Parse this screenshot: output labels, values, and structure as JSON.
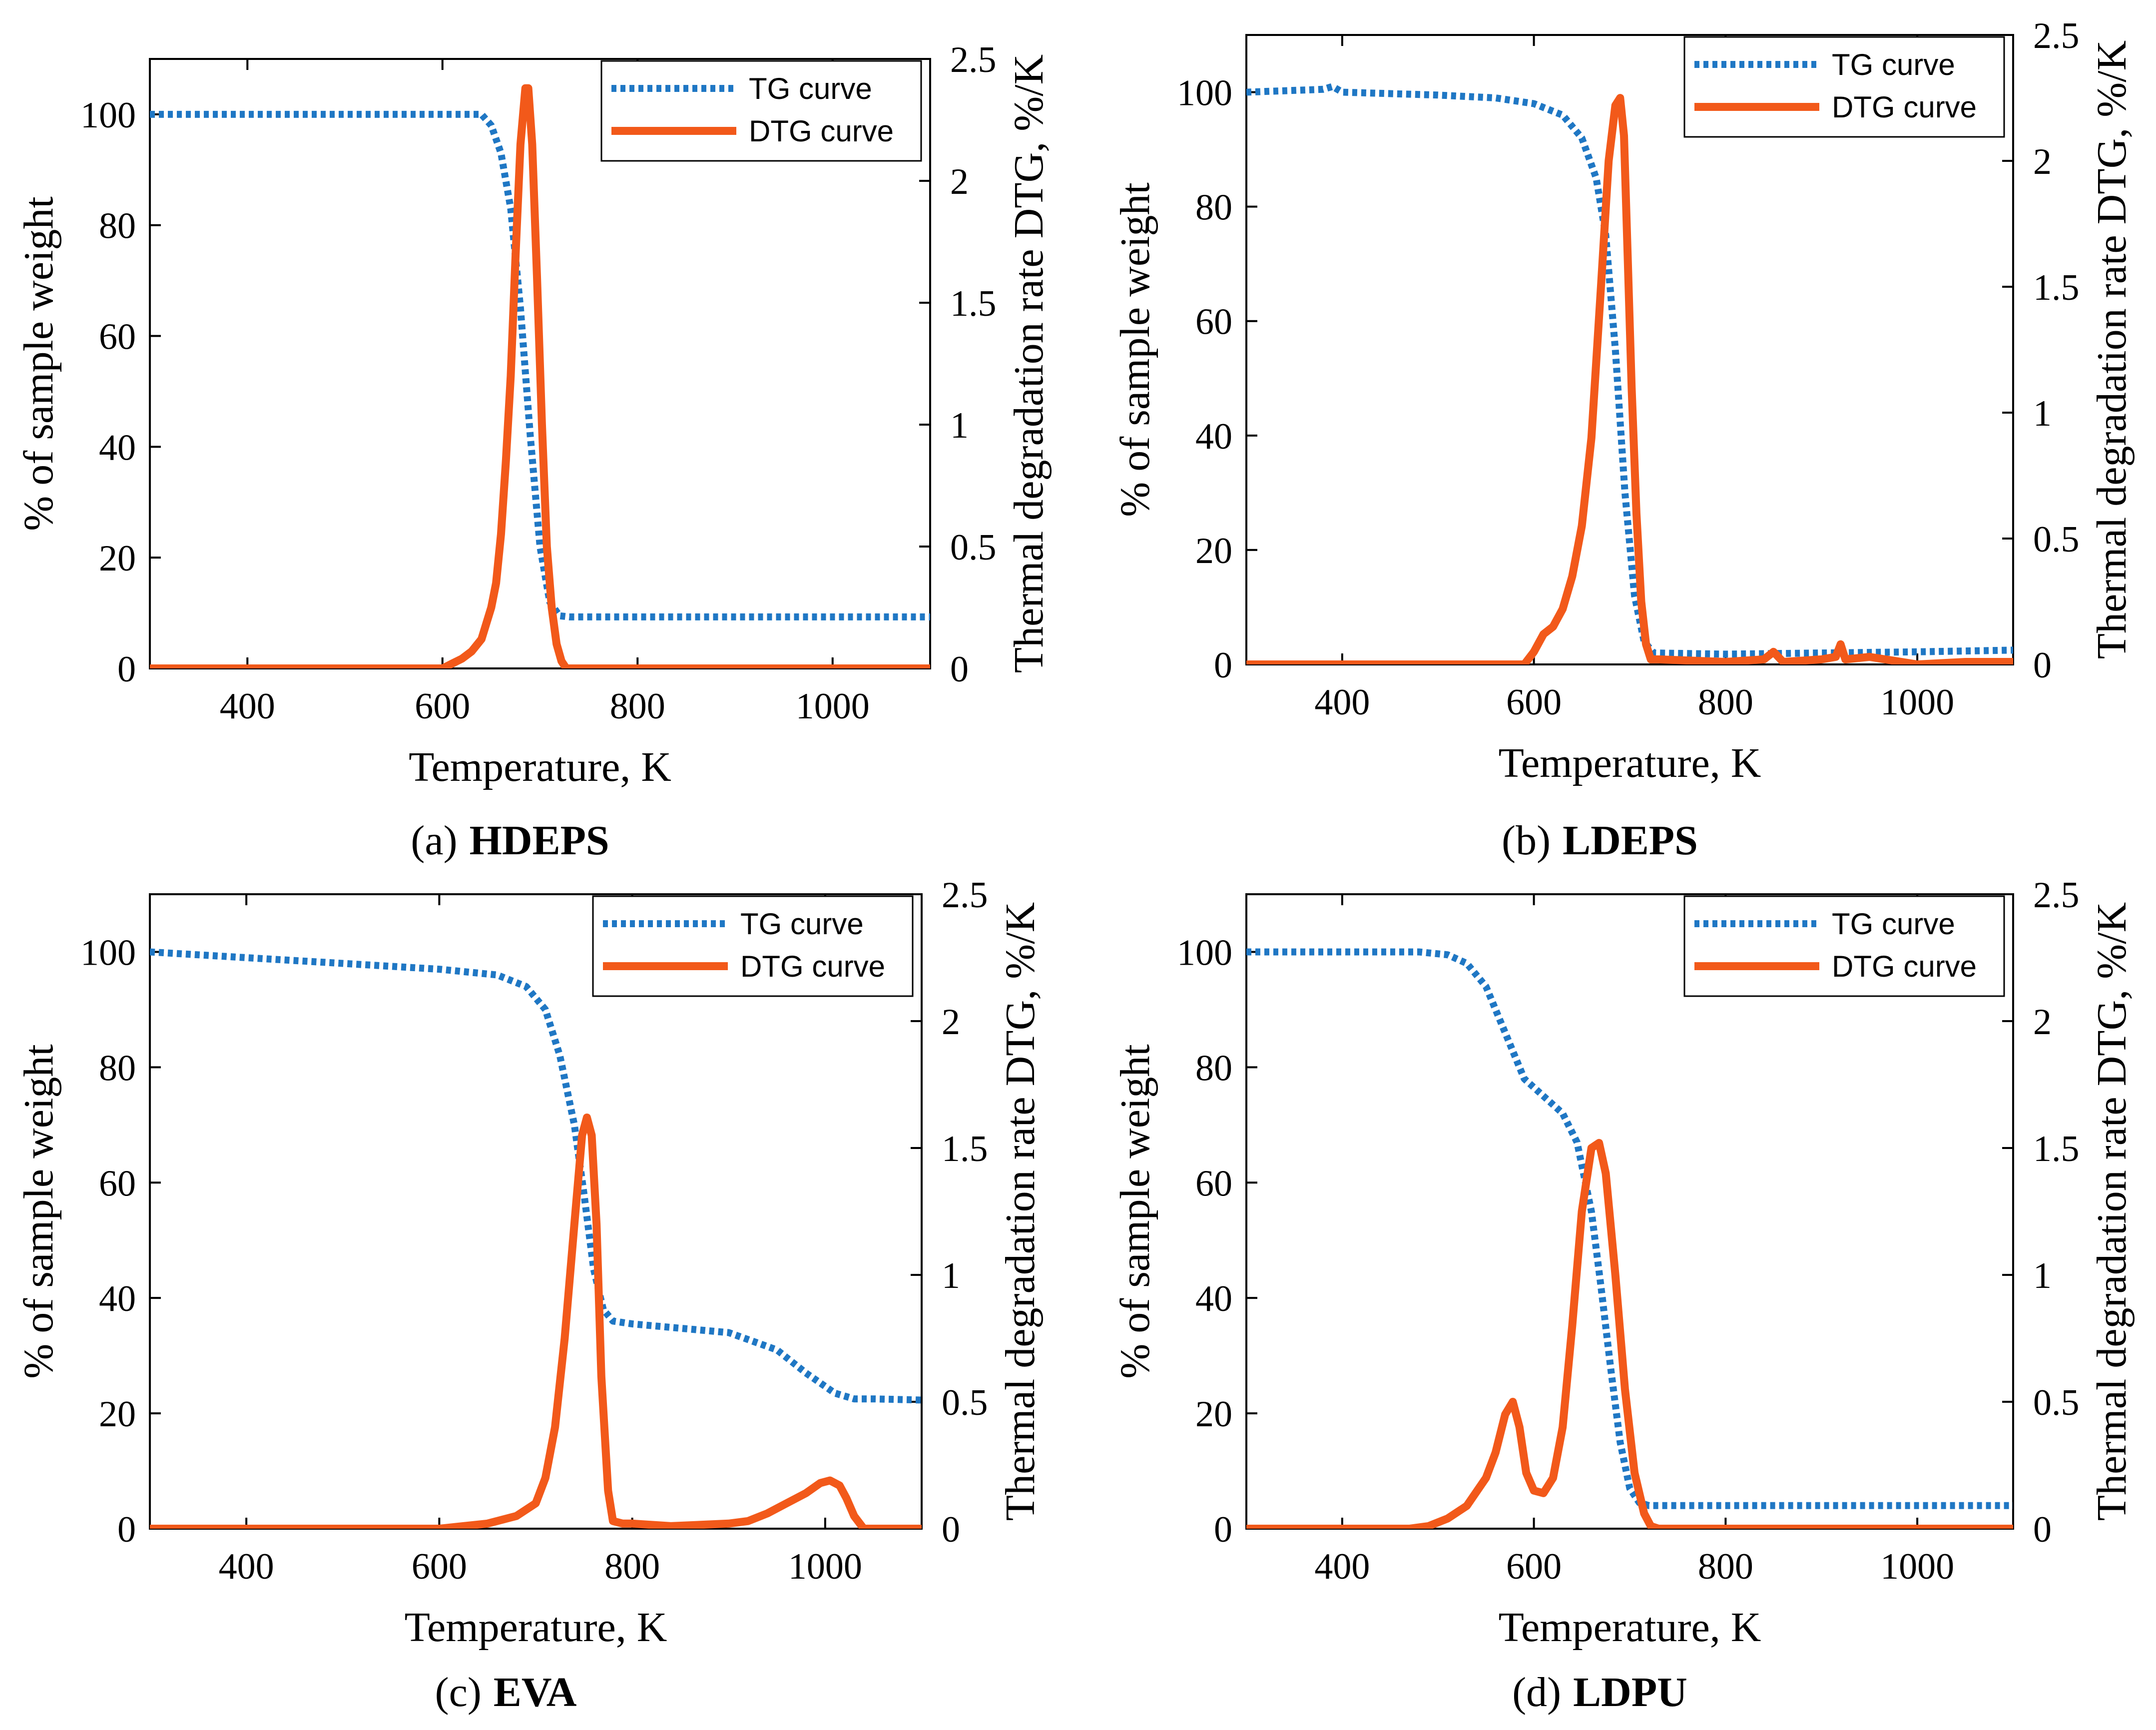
{
  "colors": {
    "tg": "#1f77c4",
    "dtg": "#f2591a",
    "axis": "#000000"
  },
  "chart_data": [
    {
      "id": "a",
      "type": "line",
      "caption_prefix": "(a)",
      "caption_name": "HDEPS",
      "xlabel": "Temperature, K",
      "ylabel_left": "% of sample weight",
      "ylabel_right": "Thermal degradation rate DTG, %/K",
      "xlim": [
        300,
        1100
      ],
      "ylim_left": [
        0,
        110
      ],
      "ylim_right": [
        0,
        2.5
      ],
      "xticks": [
        400,
        600,
        800,
        1000
      ],
      "yticks_left": [
        0,
        20,
        40,
        60,
        80,
        100
      ],
      "yticks_right": [
        0,
        0.5,
        1,
        1.5,
        2,
        2.5
      ],
      "legend": [
        "TG curve",
        "DTG curve"
      ],
      "legend_position": "top-right",
      "series": [
        {
          "name": "TG curve",
          "axis": "left",
          "style": "dotted",
          "x": [
            300,
            500,
            640,
            650,
            660,
            670,
            680,
            690,
            700,
            710,
            720,
            730,
            800,
            1000,
            1100
          ],
          "y": [
            100,
            100,
            100,
            98,
            93,
            83,
            65,
            42,
            22,
            12,
            9.5,
            9.3,
            9.3,
            9.3,
            9.3
          ]
        },
        {
          "name": "DTG curve",
          "axis": "right",
          "style": "solid",
          "x": [
            300,
            600,
            610,
            620,
            630,
            640,
            650,
            655,
            660,
            665,
            670,
            675,
            680,
            685,
            688,
            692,
            697,
            702,
            707,
            712,
            717,
            722,
            727,
            735,
            1100
          ],
          "y": [
            0,
            0,
            0.02,
            0.04,
            0.07,
            0.12,
            0.25,
            0.35,
            0.55,
            0.85,
            1.2,
            1.7,
            2.15,
            2.38,
            2.38,
            2.15,
            1.6,
            1.0,
            0.5,
            0.25,
            0.1,
            0.03,
            0.0,
            0,
            0
          ]
        }
      ]
    },
    {
      "id": "b",
      "type": "line",
      "caption_prefix": "(b)",
      "caption_name": "LDEPS",
      "xlabel": "Temperature, K",
      "ylabel_left": "% of sample weight",
      "ylabel_right": "Thermal degradation rate DTG, %/K",
      "xlim": [
        300,
        1100
      ],
      "ylim_left": [
        0,
        110
      ],
      "ylim_right": [
        0,
        2.5
      ],
      "xticks": [
        400,
        600,
        800,
        1000
      ],
      "yticks_left": [
        0,
        20,
        40,
        60,
        80,
        100
      ],
      "yticks_right": [
        0,
        0.5,
        1,
        1.5,
        2,
        2.5
      ],
      "legend": [
        "TG curve",
        "DTG curve"
      ],
      "legend_position": "top-right",
      "series": [
        {
          "name": "TG curve",
          "axis": "left",
          "style": "dotted",
          "x": [
            300,
            380,
            390,
            400,
            500,
            560,
            600,
            630,
            650,
            665,
            675,
            685,
            695,
            705,
            715,
            725,
            800,
            900,
            1000,
            1100
          ],
          "y": [
            100,
            100.5,
            101,
            100,
            99.5,
            99,
            98,
            96,
            92,
            85,
            75,
            55,
            30,
            12,
            4,
            2,
            1.8,
            2.0,
            2.2,
            2.5
          ]
        },
        {
          "name": "DTG curve",
          "axis": "right",
          "style": "solid",
          "x": [
            300,
            590,
            600,
            610,
            620,
            630,
            640,
            650,
            660,
            670,
            678,
            685,
            690,
            694,
            698,
            702,
            707,
            712,
            717,
            722,
            730,
            800,
            840,
            850,
            860,
            900,
            915,
            920,
            925,
            950,
            1000,
            1050,
            1100
          ],
          "y": [
            0,
            0,
            0.05,
            0.12,
            0.15,
            0.22,
            0.35,
            0.55,
            0.9,
            1.5,
            2.0,
            2.22,
            2.25,
            2.1,
            1.6,
            1.1,
            0.6,
            0.25,
            0.08,
            0.02,
            0.02,
            0.01,
            0.02,
            0.05,
            0.01,
            0.02,
            0.03,
            0.08,
            0.02,
            0.03,
            0.0,
            0.01,
            0.01
          ]
        }
      ]
    },
    {
      "id": "c",
      "type": "line",
      "caption_prefix": "(c)",
      "caption_name": "EVA",
      "xlabel": "Temperature, K",
      "ylabel_left": "% of sample weight",
      "ylabel_right": "Thermal degradation rate DTG, %/K",
      "xlim": [
        300,
        1100
      ],
      "ylim_left": [
        0,
        110
      ],
      "ylim_right": [
        0,
        2.5
      ],
      "xticks": [
        400,
        600,
        800,
        1000
      ],
      "yticks_left": [
        0,
        20,
        40,
        60,
        80,
        100
      ],
      "yticks_right": [
        0,
        0.5,
        1,
        1.5,
        2,
        2.5
      ],
      "legend": [
        "TG curve",
        "DTG curve"
      ],
      "legend_position": "top-right",
      "series": [
        {
          "name": "TG curve",
          "axis": "left",
          "style": "dotted",
          "x": [
            300,
            400,
            500,
            600,
            660,
            690,
            710,
            725,
            740,
            750,
            760,
            770,
            780,
            800,
            900,
            950,
            980,
            1010,
            1030,
            1050,
            1100
          ],
          "y": [
            100,
            99,
            98,
            97,
            96,
            94,
            90,
            82,
            70,
            58,
            45,
            38,
            36,
            35.5,
            34,
            31,
            27,
            23.5,
            22.5,
            22.5,
            22.3
          ]
        },
        {
          "name": "DTG curve",
          "axis": "right",
          "style": "solid",
          "x": [
            300,
            600,
            650,
            680,
            700,
            710,
            720,
            730,
            740,
            748,
            753,
            758,
            763,
            768,
            775,
            780,
            790,
            800,
            840,
            900,
            920,
            940,
            960,
            980,
            995,
            1005,
            1015,
            1022,
            1030,
            1040,
            1100
          ],
          "y": [
            0,
            0,
            0.02,
            0.05,
            0.1,
            0.2,
            0.4,
            0.75,
            1.2,
            1.55,
            1.62,
            1.55,
            1.2,
            0.6,
            0.15,
            0.03,
            0.02,
            0.02,
            0.01,
            0.02,
            0.03,
            0.06,
            0.1,
            0.14,
            0.18,
            0.19,
            0.17,
            0.12,
            0.05,
            0.0,
            0.0
          ]
        }
      ]
    },
    {
      "id": "d",
      "type": "line",
      "caption_prefix": "(d)",
      "caption_name": "LDPU",
      "xlabel": "Temperature, K",
      "ylabel_left": "% of sample weight",
      "ylabel_right": "Thermal degradation rate DTG, %/K",
      "xlim": [
        300,
        1100
      ],
      "ylim_left": [
        0,
        110
      ],
      "ylim_right": [
        0,
        2.5
      ],
      "xticks": [
        400,
        600,
        800,
        1000
      ],
      "yticks_left": [
        0,
        20,
        40,
        60,
        80,
        100
      ],
      "yticks_right": [
        0,
        0.5,
        1,
        1.5,
        2,
        2.5
      ],
      "legend": [
        "TG curve",
        "DTG curve"
      ],
      "legend_position": "top-right",
      "series": [
        {
          "name": "TG curve",
          "axis": "left",
          "style": "dotted",
          "x": [
            300,
            400,
            480,
            510,
            530,
            550,
            570,
            590,
            610,
            630,
            645,
            660,
            670,
            680,
            690,
            700,
            710,
            720,
            800,
            1000,
            1100
          ],
          "y": [
            100,
            100,
            100,
            99.5,
            98,
            94,
            86,
            78,
            75,
            72,
            67,
            55,
            42,
            28,
            15,
            7,
            4.5,
            4,
            4,
            4,
            4
          ]
        },
        {
          "name": "DTG curve",
          "axis": "right",
          "style": "solid",
          "x": [
            300,
            470,
            490,
            510,
            530,
            550,
            560,
            570,
            578,
            585,
            592,
            600,
            610,
            620,
            630,
            640,
            650,
            660,
            668,
            675,
            685,
            695,
            705,
            715,
            722,
            730,
            1100
          ],
          "y": [
            0,
            0,
            0.01,
            0.04,
            0.09,
            0.2,
            0.3,
            0.45,
            0.5,
            0.4,
            0.22,
            0.15,
            0.14,
            0.2,
            0.4,
            0.8,
            1.25,
            1.5,
            1.52,
            1.4,
            1.0,
            0.55,
            0.22,
            0.06,
            0.01,
            0,
            0
          ]
        }
      ]
    }
  ]
}
